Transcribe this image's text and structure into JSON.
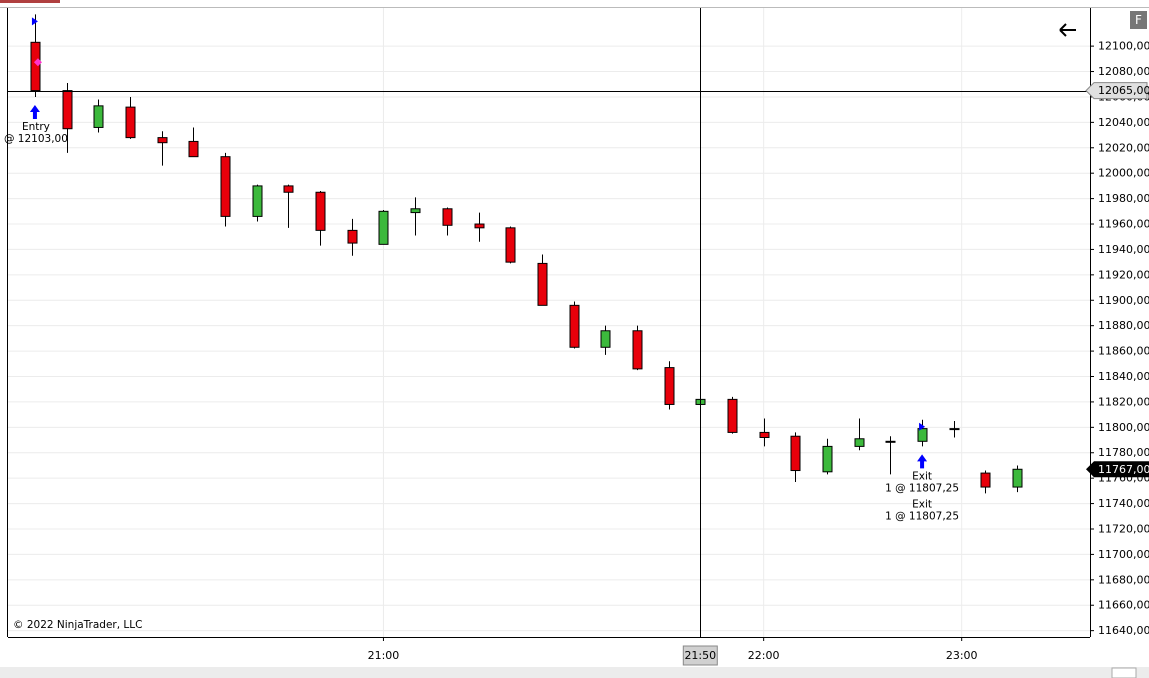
{
  "chart_data": {
    "type": "candlestick",
    "categories": [
      null,
      null,
      null,
      null,
      null,
      null,
      null,
      null,
      null,
      null,
      null,
      null,
      null,
      null,
      null,
      null,
      null,
      null,
      null,
      null,
      null,
      null,
      null,
      null,
      null,
      null,
      null,
      null,
      null,
      null,
      null,
      null
    ],
    "open": [
      12103,
      12065,
      12036,
      12052,
      12028,
      12025,
      12013,
      11966,
      11990,
      11985,
      11955,
      11944,
      11969,
      11972,
      11960,
      11957,
      11929,
      11896,
      11863,
      11876,
      11847,
      11818,
      11822,
      11796,
      11793,
      11765,
      11785,
      11789,
      11789,
      11799,
      11764,
      11753
    ],
    "high": [
      12125,
      12071,
      12058,
      12060,
      12033,
      12036,
      12016,
      11991,
      11991,
      11986,
      11964,
      11971,
      11981,
      11973,
      11969,
      11958,
      11936,
      11899,
      11880,
      11880,
      11852,
      11832,
      11824,
      11807,
      11796,
      11791,
      11807,
      11793,
      11806,
      11805,
      11766,
      11770
    ],
    "low": [
      12060,
      12016,
      12032,
      12027,
      12006,
      12013,
      11958,
      11962,
      11957,
      11943,
      11935,
      11944,
      11951,
      11951,
      11946,
      11929,
      11896,
      11862,
      11857,
      11845,
      11814,
      11806,
      11795,
      11785,
      11757,
      11763,
      11782,
      11763,
      11785,
      11792,
      11748,
      11749
    ],
    "close": [
      12065,
      12035,
      12053,
      12028,
      12024,
      12013,
      11966,
      11990,
      11985,
      11955,
      11945,
      11970,
      11972,
      11959,
      11957,
      11930,
      11896,
      11863,
      11876,
      11846,
      11818,
      11822,
      11796,
      11792,
      11766,
      11785,
      11791,
      11789,
      11799,
      11799,
      11753,
      11767
    ],
    "up_color": "#3cb93c",
    "down_color": "#e8000b",
    "ylim": [
      11635,
      12130
    ],
    "yticks": [
      {
        "value": 11640,
        "label": "11640,00"
      },
      {
        "value": 11660,
        "label": "11660,00"
      },
      {
        "value": 11680,
        "label": "11680,00"
      },
      {
        "value": 11700,
        "label": "11700,00"
      },
      {
        "value": 11720,
        "label": "11720,00"
      },
      {
        "value": 11740,
        "label": "11740,00"
      },
      {
        "value": 11760,
        "label": "11760,00"
      },
      {
        "value": 11780,
        "label": "11780,00"
      },
      {
        "value": 11800,
        "label": "11800,00"
      },
      {
        "value": 11820,
        "label": "11820,00"
      },
      {
        "value": 11840,
        "label": "11840,00"
      },
      {
        "value": 11860,
        "label": "11860,00"
      },
      {
        "value": 11880,
        "label": "11880,00"
      },
      {
        "value": 11900,
        "label": "11900,00"
      },
      {
        "value": 11920,
        "label": "11920,00"
      },
      {
        "value": 11940,
        "label": "11940,00"
      },
      {
        "value": 11960,
        "label": "11960,00"
      },
      {
        "value": 11980,
        "label": "11980,00"
      },
      {
        "value": 12000,
        "label": "12000,00"
      },
      {
        "value": 12020,
        "label": "12020,00"
      },
      {
        "value": 12040,
        "label": "12040,00"
      },
      {
        "value": 12060,
        "label": "12060,00"
      },
      {
        "value": 12080,
        "label": "12080,00"
      },
      {
        "value": 12100,
        "label": "12100,00"
      }
    ],
    "xlim": [
      -0.85,
      33.3
    ],
    "xticks": [
      {
        "value": 11,
        "label": "21:00"
      },
      {
        "value": 23,
        "label": "22:00"
      },
      {
        "value": 29.25,
        "label": "23:00"
      }
    ],
    "crosshair": {
      "x": {
        "value": 21,
        "label": "21:50"
      },
      "y": {
        "value": 12065,
        "label": "12065,00"
      }
    },
    "last_price": {
      "value": 11767,
      "label": "11767,00"
    },
    "executions": [
      {
        "bar": 0,
        "lines": [
          "Entry",
          "@ 12103,00"
        ]
      },
      {
        "bar": 28,
        "lines": [
          "Exit",
          "1 @ 11807,25"
        ]
      },
      {
        "bar": 28,
        "lines": [
          "Exit",
          "1 @ 11807,25"
        ]
      }
    ],
    "copyright": "© 2022 NinjaTrader, LLC",
    "button": "F"
  }
}
